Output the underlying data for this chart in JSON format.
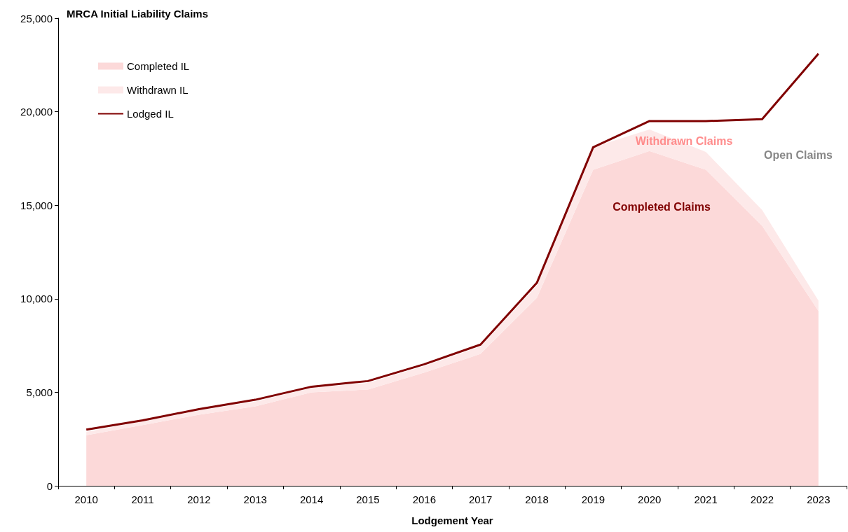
{
  "chart_data": {
    "type": "area",
    "title": "MRCA Initial Liability Claims",
    "xlabel": "Lodgement Year",
    "categories": [
      "2010",
      "2011",
      "2012",
      "2013",
      "2014",
      "2015",
      "2016",
      "2017",
      "2018",
      "2019",
      "2020",
      "2021",
      "2022",
      "2023"
    ],
    "stacked": true,
    "series": [
      {
        "name": "Completed IL",
        "color": "#fcd9d9",
        "values": [
          2700,
          3250,
          3800,
          4250,
          5000,
          5150,
          6050,
          7050,
          10050,
          16900,
          17900,
          16900,
          13900,
          9350
        ]
      },
      {
        "name": "Withdrawn IL",
        "color": "#fde9e9",
        "values": [
          180,
          200,
          230,
          250,
          250,
          350,
          350,
          400,
          650,
          1200,
          1150,
          950,
          850,
          550
        ]
      },
      {
        "name": "Lodged IL",
        "type": "line",
        "color": "#800000",
        "values": [
          3000,
          3500,
          4100,
          4600,
          5300,
          5600,
          6500,
          7550,
          10850,
          18100,
          19500,
          19500,
          19600,
          23100
        ]
      }
    ],
    "ylim": [
      0,
      25000
    ],
    "yticks": [
      {
        "value": 0,
        "label": "0"
      },
      {
        "value": 5000,
        "label": "5,000"
      },
      {
        "value": 10000,
        "label": "10,000"
      },
      {
        "value": 15000,
        "label": "15,000"
      },
      {
        "value": 20000,
        "label": "20,000"
      },
      {
        "value": 25000,
        "label": "25,000"
      }
    ],
    "grid": false,
    "legend": "top left",
    "annotations": [
      "Withdrawn Claims",
      "Completed Claims",
      "Open Claims"
    ]
  }
}
